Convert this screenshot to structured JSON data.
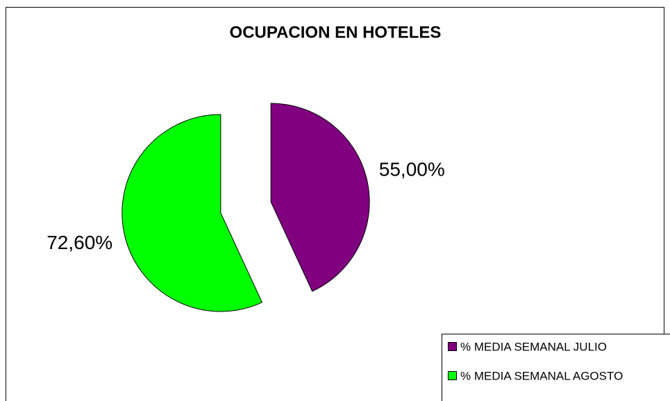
{
  "chart_data": {
    "type": "pie",
    "title": "OCUPACION EN HOTELES",
    "categories": [
      "% MEDIA SEMANAL JULIO",
      "% MEDIA SEMANAL AGOSTO"
    ],
    "values": [
      55,
      72.6
    ],
    "value_labels": [
      "55,00%",
      "72,60%"
    ],
    "colors": [
      "#800080",
      "#00ff00"
    ],
    "legend": "bottom-right"
  }
}
